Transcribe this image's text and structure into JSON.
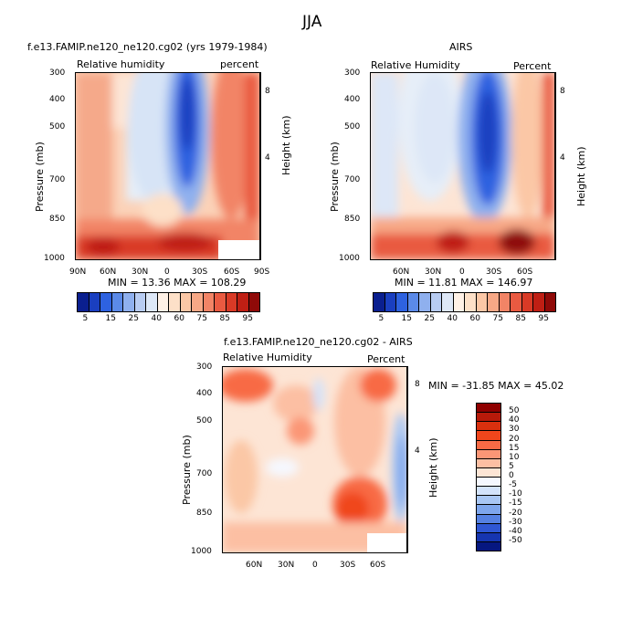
{
  "figure": {
    "season": "JJA"
  },
  "panel_model": {
    "title": "f.e13.FAMIP.ne120_ne120.cg02 (yrs 1979-1984)",
    "left_label": "Relative humidity",
    "right_label": "percent",
    "ylabel": "Pressure (mb)",
    "ylabel_right": "Height (km)",
    "yticks": [
      "300",
      "400",
      "500",
      "700",
      "850",
      "1000"
    ],
    "height_ticks": [
      "8",
      "4"
    ],
    "xticks": [
      "90N",
      "60N",
      "30N",
      "0",
      "30S",
      "60S",
      "90S"
    ],
    "stats": "MIN =    13.36   MAX =  108.29"
  },
  "panel_obs": {
    "title": "AIRS",
    "left_label": "Relative Humidity",
    "right_label": "Percent",
    "ylabel": "Pressure (mb)",
    "ylabel_right": "Height (km)",
    "yticks": [
      "300",
      "400",
      "500",
      "700",
      "850",
      "1000"
    ],
    "height_ticks": [
      "8",
      "4"
    ],
    "xticks": [
      "60N",
      "30N",
      "0",
      "30S",
      "60S"
    ],
    "stats": "MIN =    11.81   MAX =  146.97"
  },
  "panel_diff": {
    "title": "f.e13.FAMIP.ne120_ne120.cg02 - AIRS",
    "left_label": "Relative Humidity",
    "right_label": "Percent",
    "ylabel": "Pressure (mb)",
    "ylabel_right": "Height (km)",
    "yticks": [
      "300",
      "400",
      "500",
      "700",
      "850",
      "1000"
    ],
    "height_ticks": [
      "8",
      "4"
    ],
    "xticks": [
      "60N",
      "30N",
      "0",
      "30S",
      "60S"
    ],
    "stats": "MIN =   -31.85   MAX =   45.02"
  },
  "colorbar_abs": {
    "labels": [
      "5",
      "15",
      "25",
      "40",
      "60",
      "75",
      "85",
      "95"
    ],
    "colors": [
      "#0a1f8f",
      "#1a3fc0",
      "#2e62e0",
      "#5b8ae8",
      "#8fb0ee",
      "#b8ccf2",
      "#dde7f7",
      "#fff1e6",
      "#fde0c8",
      "#fbc7a6",
      "#f7a886",
      "#f28466",
      "#e95a41",
      "#d93a26",
      "#bf1f14",
      "#8f0a08"
    ]
  },
  "colorbar_diff": {
    "labels": [
      "50",
      "40",
      "30",
      "20",
      "15",
      "10",
      "5",
      "0",
      "-5",
      "-10",
      "-15",
      "-20",
      "-30",
      "-40",
      "-50"
    ],
    "colors": [
      "#8f0000",
      "#b81a0a",
      "#d9300e",
      "#f0461c",
      "#f86a45",
      "#fb9676",
      "#fcbfa3",
      "#fde5d5",
      "#f5f8ff",
      "#d3e3fb",
      "#a9c7f4",
      "#7ea6ec",
      "#5581e2",
      "#2f57d4",
      "#1635b0",
      "#061780"
    ]
  },
  "chart_data": [
    {
      "type": "heatmap",
      "title": "f.e13.FAMIP.ne120_ne120.cg02 (yrs 1979-1984)",
      "xlabel": "",
      "ylabel": "Pressure (mb)",
      "x": [
        "90N",
        "60N",
        "30N",
        "0",
        "30S",
        "60S",
        "90S"
      ],
      "y": [
        300,
        400,
        500,
        700,
        850,
        1000
      ],
      "units": "percent",
      "min": 13.36,
      "max": 108.29,
      "levels": [
        5,
        10,
        15,
        20,
        25,
        30,
        40,
        50,
        60,
        65,
        70,
        75,
        80,
        85,
        90,
        95
      ]
    },
    {
      "type": "heatmap",
      "title": "AIRS",
      "xlabel": "",
      "ylabel": "Pressure (mb)",
      "x": [
        "60N",
        "30N",
        "0",
        "30S",
        "60S"
      ],
      "y": [
        300,
        400,
        500,
        700,
        850,
        1000
      ],
      "units": "Percent",
      "min": 11.81,
      "max": 146.97,
      "levels": [
        5,
        10,
        15,
        20,
        25,
        30,
        40,
        50,
        60,
        65,
        70,
        75,
        80,
        85,
        90,
        95
      ]
    },
    {
      "type": "heatmap",
      "title": "f.e13.FAMIP.ne120_ne120.cg02 - AIRS",
      "xlabel": "",
      "ylabel": "Pressure (mb)",
      "x": [
        "60N",
        "30N",
        "0",
        "30S",
        "60S"
      ],
      "y": [
        300,
        400,
        500,
        700,
        850,
        1000
      ],
      "units": "Percent",
      "min": -31.85,
      "max": 45.02,
      "levels": [
        -50,
        -40,
        -30,
        -20,
        -15,
        -10,
        -5,
        0,
        5,
        10,
        15,
        20,
        30,
        40,
        50
      ]
    }
  ]
}
